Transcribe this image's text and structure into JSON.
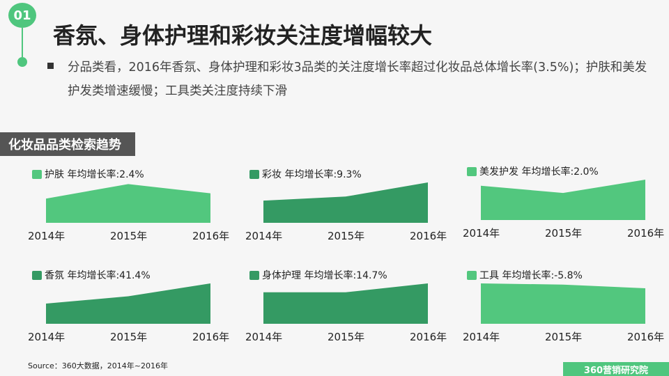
{
  "badge": "01",
  "title": "香氛、身体护理和彩妆关注度增幅较大",
  "description": "分品类看，2016年香氛、身体护理和彩妆3品类的关注度增长率超过化妆品总体增长率(3.5%)；护肤和美发护发类增速缓慢；工具类关注度持续下滑",
  "section_label": "化妆品品类检索趋势",
  "source": "Source：360大数据，2014年~2016年",
  "brand": "360营销研究院",
  "colors": {
    "light_green": "#52c77e",
    "dark_green": "#349a63",
    "badge": "#4fc67e"
  },
  "chart_data": [
    {
      "type": "area",
      "categories": [
        "2014年",
        "2015年",
        "2016年"
      ],
      "legend": "护肤 年均增长率:2.4%",
      "values": [
        0.6,
        0.96,
        0.73
      ],
      "color": "#52c77e"
    },
    {
      "type": "area",
      "categories": [
        "2014年",
        "2015年",
        "2016年"
      ],
      "legend": "彩妆 年均增长率:9.3%",
      "values": [
        0.55,
        0.65,
        1.0
      ],
      "color": "#349a63"
    },
    {
      "type": "area",
      "categories": [
        "2014年",
        "2015年",
        "2016年"
      ],
      "legend": "美发护发 年均增长率:2.0%",
      "values": [
        0.85,
        0.67,
        1.0
      ],
      "color": "#52c77e"
    },
    {
      "type": "area",
      "categories": [
        "2014年",
        "2015年",
        "2016年"
      ],
      "legend": "香氛 年均增长率:41.4%",
      "values": [
        0.5,
        0.68,
        1.0
      ],
      "color": "#349a63"
    },
    {
      "type": "area",
      "categories": [
        "2014年",
        "2015年",
        "2016年"
      ],
      "legend": "身体护理 年均增长率:14.7%",
      "values": [
        0.78,
        0.78,
        1.0
      ],
      "color": "#349a63"
    },
    {
      "type": "area",
      "categories": [
        "2014年",
        "2015年",
        "2016年"
      ],
      "legend": "工具 年均增长率:-5.8%",
      "values": [
        1.0,
        0.97,
        0.88
      ],
      "color": "#52c77e"
    }
  ]
}
